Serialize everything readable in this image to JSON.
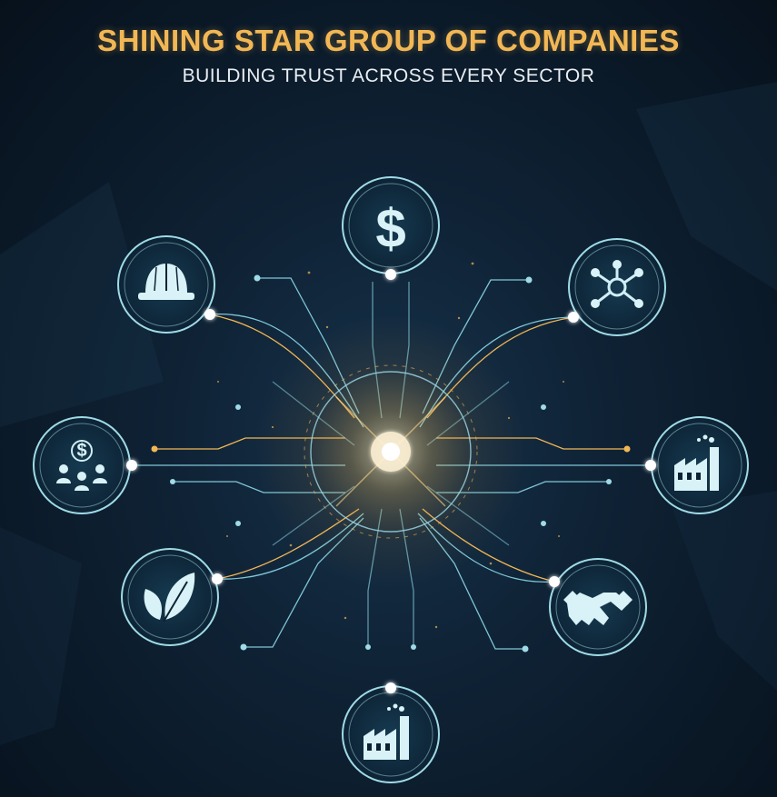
{
  "header": {
    "title": "SHINING STAR GROUP OF COMPANIES",
    "subtitle": "BUILDING TRUST ACROSS EVERY SECTOR"
  },
  "colors": {
    "accent_gold": "#f2b755",
    "line_cyan": "#7fc7d6",
    "node_ring": "#9fdbe6",
    "background": "#0f2235"
  },
  "nodes": [
    {
      "id": "finance",
      "icon": "dollar-icon"
    },
    {
      "id": "network",
      "icon": "network-icon"
    },
    {
      "id": "industry-right",
      "icon": "factory-icon"
    },
    {
      "id": "partnership",
      "icon": "handshake-icon"
    },
    {
      "id": "industry-bottom",
      "icon": "factory-icon"
    },
    {
      "id": "agriculture",
      "icon": "leaf-icon"
    },
    {
      "id": "people-finance",
      "icon": "people-dollar-icon"
    },
    {
      "id": "construction",
      "icon": "hard-hat-icon"
    }
  ]
}
